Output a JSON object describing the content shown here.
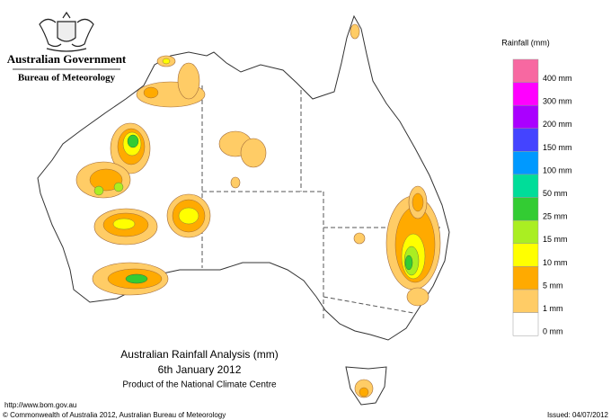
{
  "header": {
    "government": "Australian Government",
    "agency": "Bureau of Meteorology"
  },
  "legend": {
    "title": "Rainfall (mm)",
    "items": [
      {
        "label": "400 mm",
        "color": "#f768a1"
      },
      {
        "label": "300 mm",
        "color": "#ff00ff"
      },
      {
        "label": "200 mm",
        "color": "#aa00ff"
      },
      {
        "label": "150 mm",
        "color": "#4444ff"
      },
      {
        "label": "100 mm",
        "color": "#0099ff"
      },
      {
        "label": "50 mm",
        "color": "#00dd99"
      },
      {
        "label": "25 mm",
        "color": "#33cc33"
      },
      {
        "label": "15 mm",
        "color": "#aaee22"
      },
      {
        "label": "10 mm",
        "color": "#ffff00"
      },
      {
        "label": "5 mm",
        "color": "#ffaa00"
      },
      {
        "label": "1 mm",
        "color": "#ffcc66"
      },
      {
        "label": "0 mm",
        "color": "#ffffff"
      }
    ]
  },
  "map_title": {
    "title": "Australian Rainfall Analysis (mm)",
    "date": "6th January 2012",
    "product": "Product of the National Climate Centre"
  },
  "footer": {
    "url": "http://www.bom.gov.au",
    "copyright": "© Commonwealth of Australia 2012, Australian Bureau of Meteorology",
    "issued": "Issued: 04/07/2012"
  }
}
